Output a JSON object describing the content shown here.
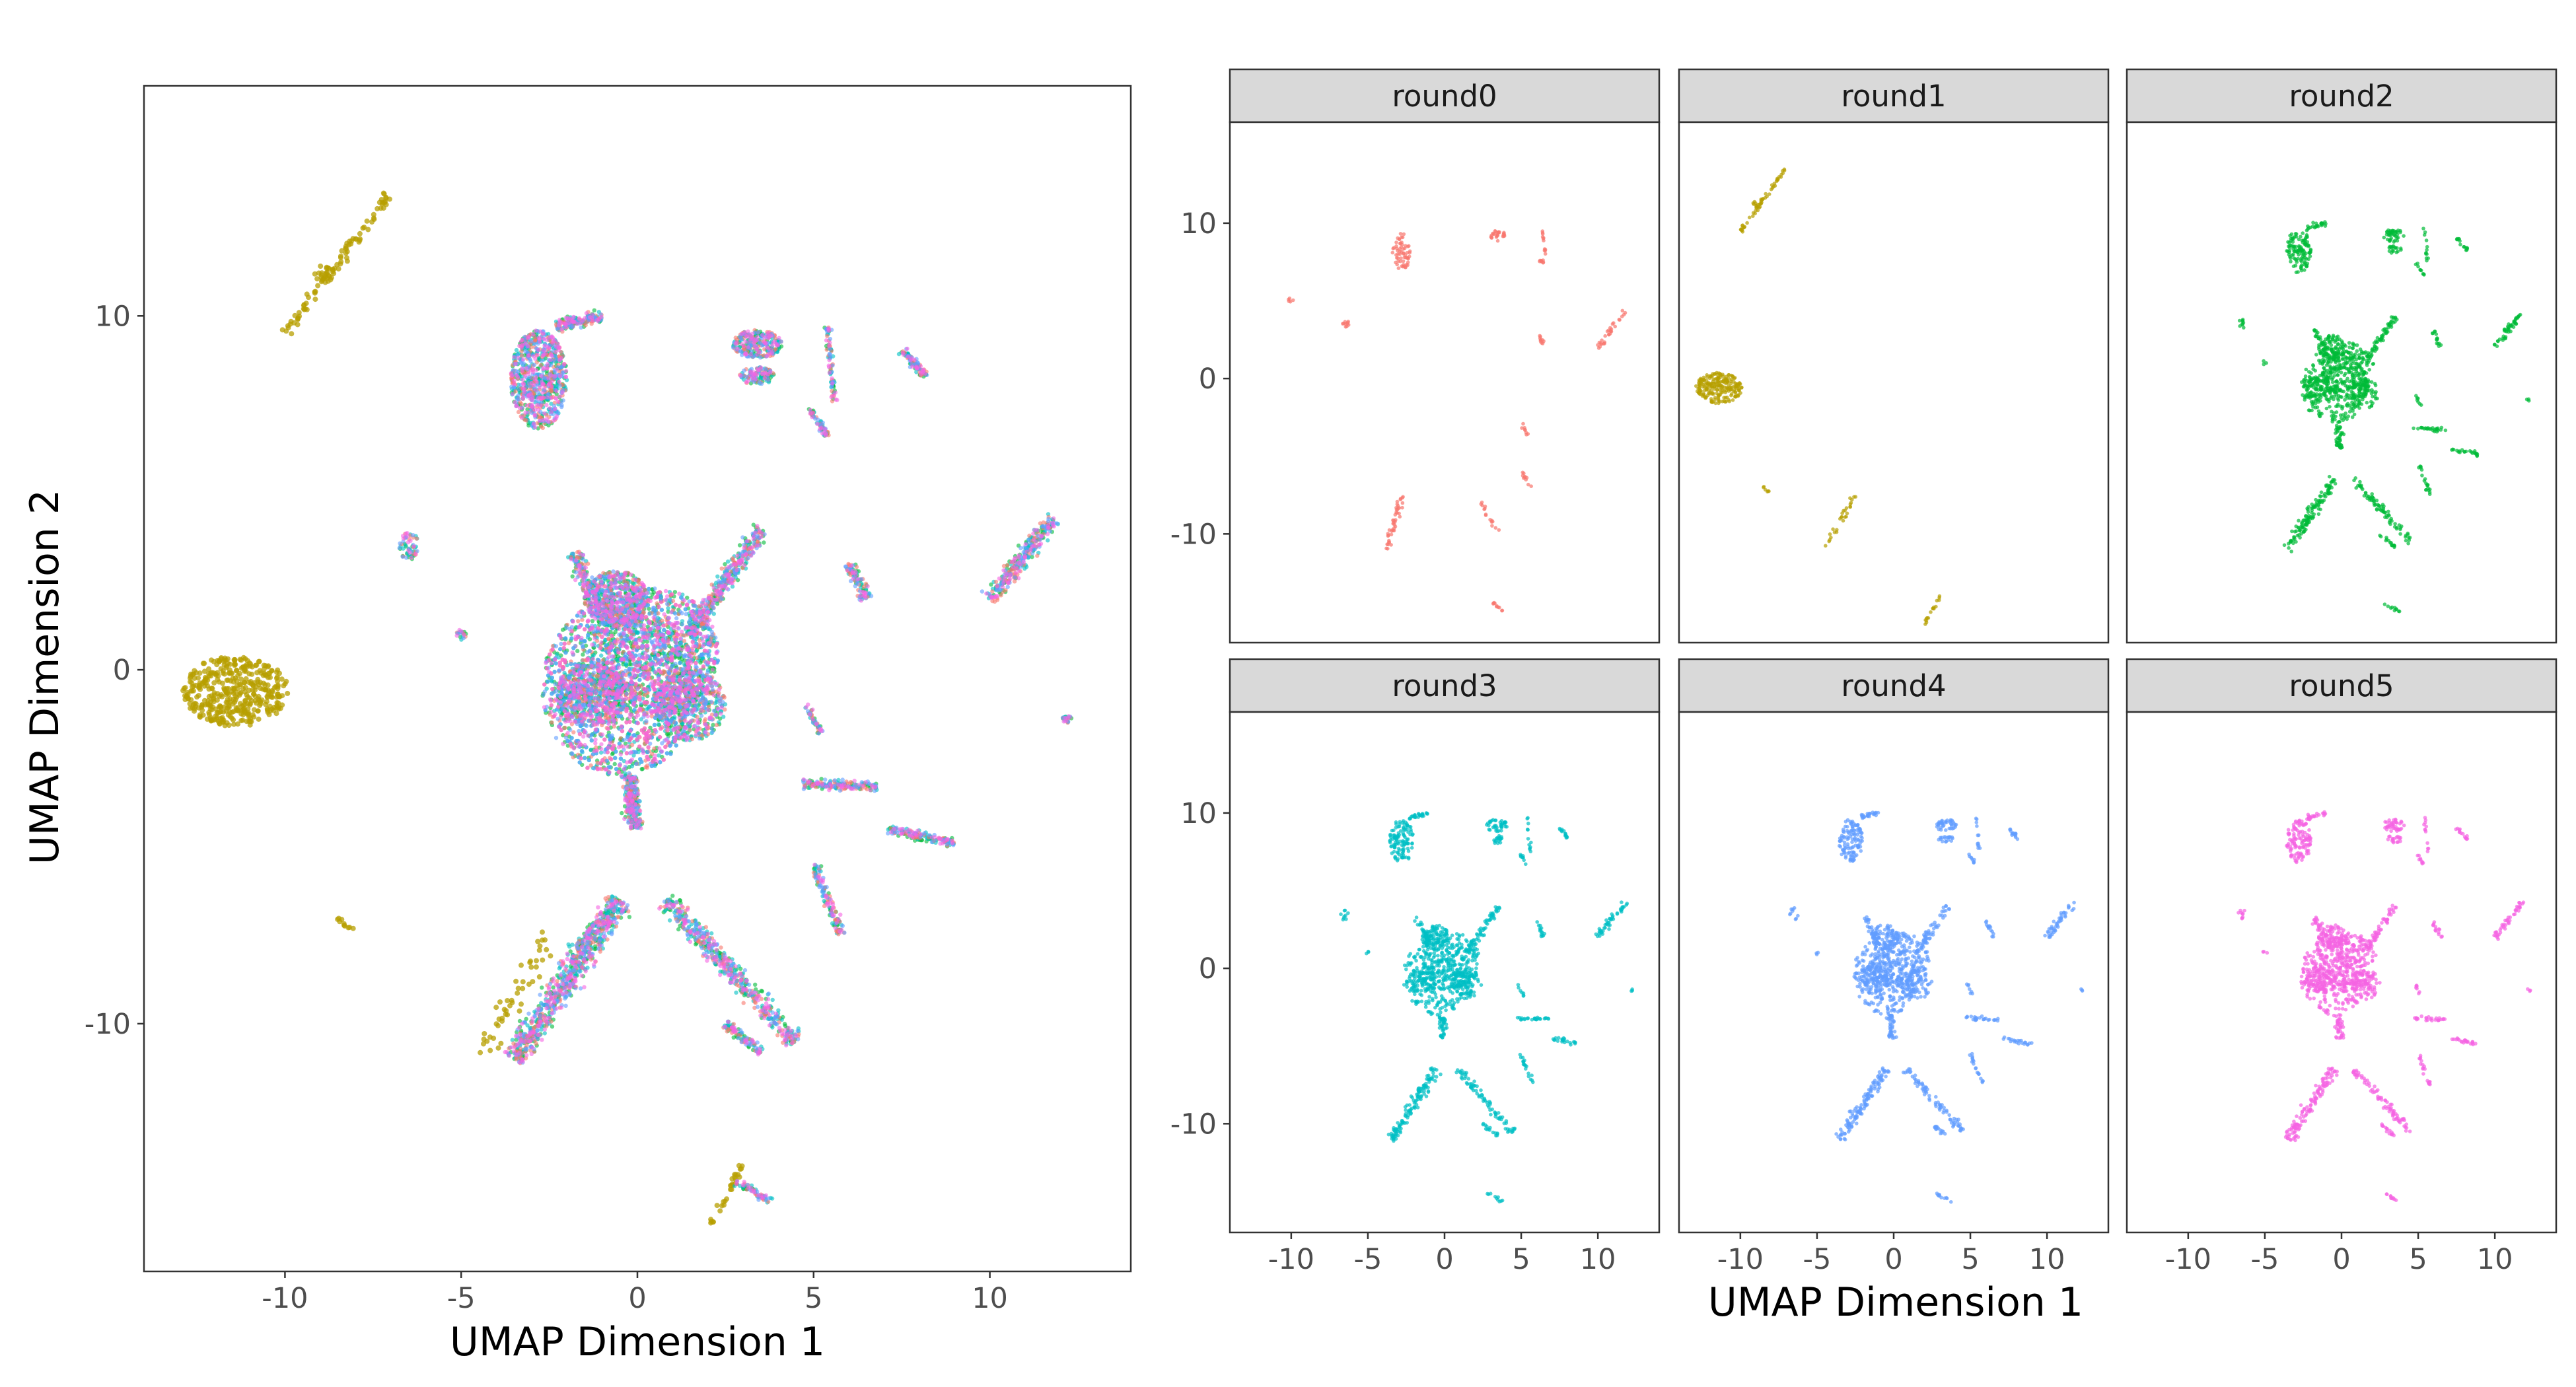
{
  "chart_data": [
    {
      "type": "scatter",
      "panel": "combined",
      "xlabel": "UMAP Dimension 1",
      "ylabel": "UMAP Dimension 2",
      "xlim": [
        -14,
        14
      ],
      "ylim": [
        -17,
        16.5
      ],
      "xticks": [
        -10,
        -5,
        0,
        5,
        10
      ],
      "yticks": [
        -10,
        0,
        10
      ],
      "xtick_labels": [
        "-10",
        "-5",
        "0",
        "5",
        "10"
      ],
      "ytick_labels": [
        "-10",
        "0",
        "10"
      ],
      "grid": false,
      "legend": "none",
      "series_colors": {
        "round0": "#F8766D",
        "round1": "#B79F00",
        "round2": "#00BA38",
        "round3": "#00BFC4",
        "round4": "#619CFF",
        "round5": "#F564E3"
      }
    },
    {
      "type": "scatter",
      "panel": "faceted",
      "xlabel": "UMAP Dimension 1",
      "xlim": [
        -14,
        14
      ],
      "ylim": [
        -17,
        16.5
      ],
      "xticks": [
        -10,
        -5,
        0,
        5,
        10
      ],
      "yticks": [
        -10,
        0,
        10
      ],
      "xtick_labels": [
        "-10",
        "-5",
        "0",
        "5",
        "10"
      ],
      "ytick_labels": [
        "-10",
        "0",
        "10"
      ],
      "facets": [
        {
          "name": "round0",
          "color": "#F8766D",
          "density": "sparse"
        },
        {
          "name": "round1",
          "color": "#B79F00",
          "density": "sparse"
        },
        {
          "name": "round2",
          "color": "#00BA38",
          "density": "dense"
        },
        {
          "name": "round3",
          "color": "#00BFC4",
          "density": "dense"
        },
        {
          "name": "round4",
          "color": "#619CFF",
          "density": "dense"
        },
        {
          "name": "round5",
          "color": "#F564E3",
          "density": "dense"
        }
      ],
      "strip_color": "#D9D9D9"
    }
  ]
}
